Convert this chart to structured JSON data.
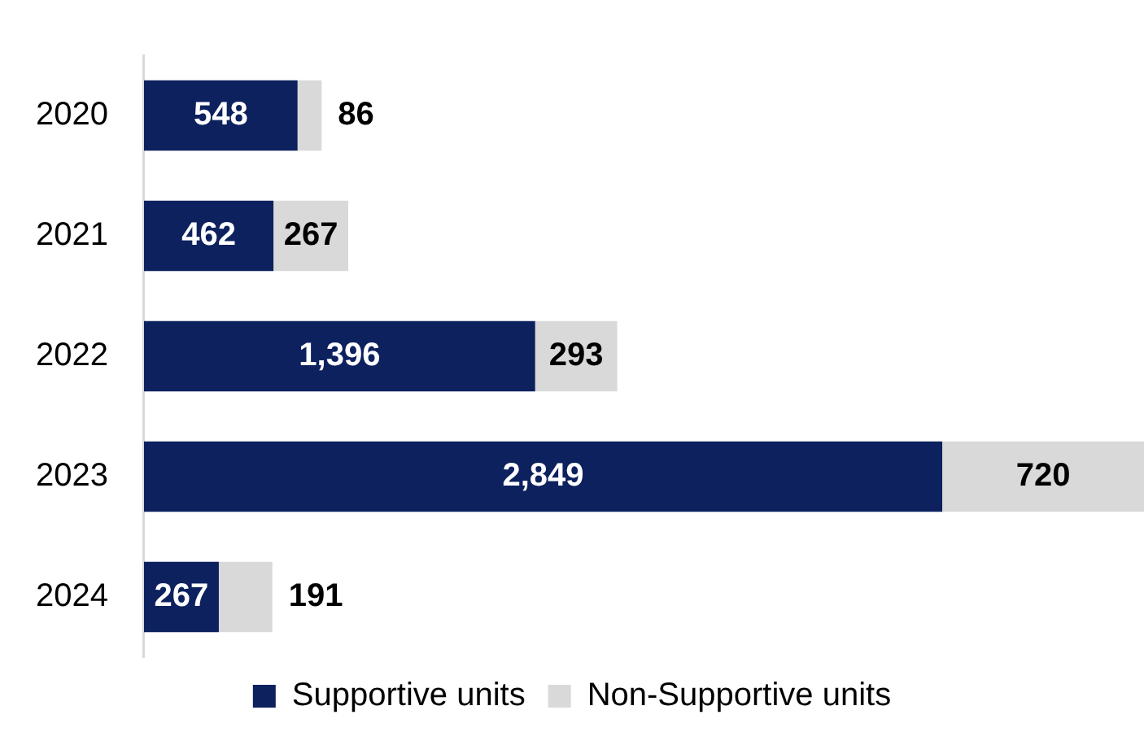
{
  "chart_data": {
    "type": "bar",
    "orientation": "horizontal",
    "stacked": true,
    "legend": "bottom",
    "grid": false,
    "categories": [
      "2020",
      "2021",
      "2022",
      "2023",
      "2024"
    ],
    "series": [
      {
        "name": "Supportive units",
        "color": "#0c215e",
        "values": [
          548,
          462,
          1396,
          2849,
          267
        ],
        "value_labels": [
          "548",
          "462",
          "1,396",
          "2,849",
          "267"
        ]
      },
      {
        "name": "Non-Supportive units",
        "color": "#d9d9d9",
        "values": [
          86,
          267,
          293,
          720,
          191
        ],
        "value_labels": [
          "86",
          "267",
          "293",
          "720",
          "191"
        ]
      }
    ]
  }
}
